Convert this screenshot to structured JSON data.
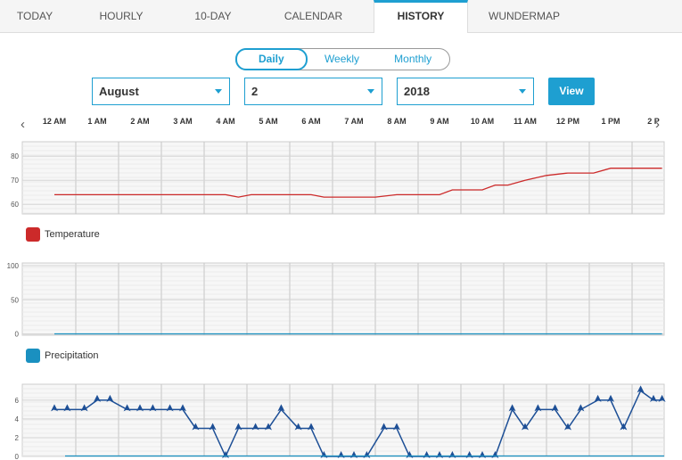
{
  "tabs": [
    {
      "label": "TODAY",
      "active": false
    },
    {
      "label": "HOURLY",
      "active": false
    },
    {
      "label": "10-DAY",
      "active": false
    },
    {
      "label": "CALENDAR",
      "active": false
    },
    {
      "label": "HISTORY",
      "active": true
    },
    {
      "label": "WUNDERMAP",
      "active": false
    }
  ],
  "mode_toggle": {
    "options": [
      "Daily",
      "Weekly",
      "Monthly"
    ],
    "selected": "Daily"
  },
  "date_picker": {
    "month": "August",
    "day": "2",
    "year": "2018",
    "view_label": "View"
  },
  "nav": {
    "prev_icon": "‹",
    "next_icon": "›"
  },
  "hours": [
    "12 AM",
    "1 AM",
    "2 AM",
    "3 AM",
    "4 AM",
    "5 AM",
    "6 AM",
    "7 AM",
    "8 AM",
    "9 AM",
    "10 AM",
    "11 AM",
    "12 PM",
    "1 PM",
    "2 P"
  ],
  "colors": {
    "accent": "#1e9fd1",
    "temperature": "#cc2a2a",
    "precipitation": "#1a90c0",
    "wind": "#1d4f96"
  },
  "chart_data": [
    {
      "type": "line",
      "series": [
        {
          "name": "Temperature",
          "x": [
            0,
            1,
            2,
            3,
            4,
            4.3,
            4.6,
            5,
            5.5,
            6,
            6.3,
            7,
            7.5,
            8,
            8.5,
            9,
            9.3,
            9.8,
            10,
            10.3,
            10.6,
            11,
            11.5,
            12,
            12.6,
            13,
            13.5,
            14,
            14.2
          ],
          "values": [
            64,
            64,
            64,
            64,
            64,
            63,
            64,
            64,
            64,
            64,
            63,
            63,
            63,
            64,
            64,
            64,
            66,
            66,
            66,
            68,
            68,
            70,
            72,
            73,
            73,
            75,
            75,
            75,
            75
          ]
        }
      ],
      "yticks": [
        60,
        70,
        80
      ],
      "ylim": [
        56,
        86
      ],
      "xlim": [
        -0.5,
        14.2
      ],
      "grid": true,
      "legend": "bottom-left"
    },
    {
      "type": "line",
      "series": [
        {
          "name": "Precipitation",
          "x": [
            0,
            14.2
          ],
          "values": [
            0,
            0
          ]
        }
      ],
      "yticks": [
        0,
        50,
        100
      ],
      "ylim": [
        -2,
        104
      ],
      "xlim": [
        -0.5,
        14.2
      ],
      "grid": true,
      "legend": "bottom-left"
    },
    {
      "type": "line",
      "series": [
        {
          "name": "",
          "x": [
            0,
            0.3,
            0.7,
            1,
            1.3,
            1.7,
            2,
            2.3,
            2.7,
            3,
            3.3,
            3.7,
            4,
            4.3,
            4.7,
            5,
            5.3,
            5.7,
            6,
            6.3,
            6.7,
            7,
            7.3,
            7.7,
            8,
            8.3,
            8.7,
            9,
            9.3,
            9.7,
            10,
            10.3,
            10.7,
            11,
            11.3,
            11.7,
            12,
            12.3,
            12.7,
            13,
            13.3,
            13.7,
            14,
            14.2
          ],
          "values": [
            5,
            5,
            5,
            6,
            6,
            5,
            5,
            5,
            5,
            5,
            3,
            3,
            0,
            3,
            3,
            3,
            5,
            3,
            3,
            0,
            0,
            0,
            0,
            3,
            3,
            0,
            0,
            0,
            0,
            0,
            0,
            0,
            5,
            3,
            5,
            5,
            3,
            5,
            6,
            6,
            3,
            7,
            6,
            6
          ]
        }
      ],
      "yticks": [
        0,
        2,
        4,
        6
      ],
      "ylim": [
        0,
        7.7
      ],
      "xlim": [
        -0.5,
        14.2
      ],
      "grid": true
    }
  ],
  "legends": {
    "temperature": "Temperature",
    "precipitation": "Precipitation"
  }
}
